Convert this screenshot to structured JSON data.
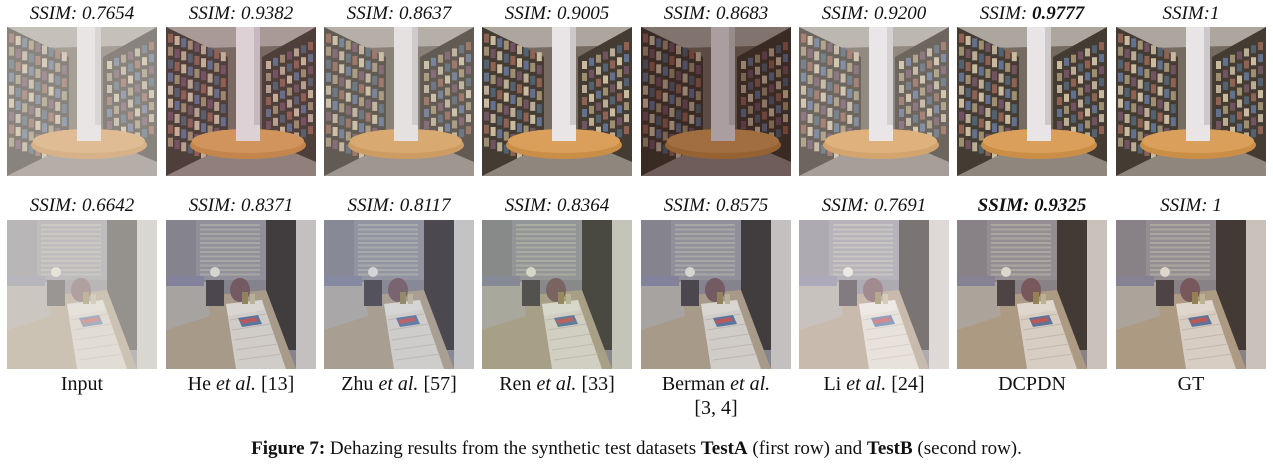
{
  "columns": [
    {
      "key": "input",
      "ssim_row1": {
        "prefix": "SSIM: ",
        "value": "0.7654",
        "best": false
      },
      "ssim_row2": {
        "prefix": "SSIM: ",
        "value": "0.6642",
        "best": false
      },
      "label": {
        "pre": "Input",
        "em": "",
        "post": "",
        "line2": ""
      },
      "look": {
        "a": "hazy",
        "b": "hazy"
      }
    },
    {
      "key": "he",
      "ssim_row1": {
        "prefix": "SSIM: ",
        "value": "0.9382",
        "best": false
      },
      "ssim_row2": {
        "prefix": "SSIM: ",
        "value": "0.8371",
        "best": false
      },
      "label": {
        "pre": "He ",
        "em": "et al.",
        "post": " [13]",
        "line2": ""
      },
      "look": {
        "a": "pinkish",
        "b": "cool"
      }
    },
    {
      "key": "zhu",
      "ssim_row1": {
        "prefix": "SSIM: ",
        "value": "0.8637",
        "best": false
      },
      "ssim_row2": {
        "prefix": "SSIM: ",
        "value": "0.8117",
        "best": false
      },
      "label": {
        "pre": "Zhu ",
        "em": "et al.",
        "post": " [57]",
        "line2": ""
      },
      "look": {
        "a": "lighthazy",
        "b": "bluish"
      }
    },
    {
      "key": "ren",
      "ssim_row1": {
        "prefix": "SSIM: ",
        "value": "0.9005",
        "best": false
      },
      "ssim_row2": {
        "prefix": "SSIM: ",
        "value": "0.8364",
        "best": false
      },
      "label": {
        "pre": "Ren ",
        "em": "et al.",
        "post": " [33]",
        "line2": ""
      },
      "look": {
        "a": "clean",
        "b": "greenish"
      }
    },
    {
      "key": "berman",
      "ssim_row1": {
        "prefix": "SSIM: ",
        "value": "0.8683",
        "best": false
      },
      "ssim_row2": {
        "prefix": "SSIM: ",
        "value": "0.8575",
        "best": false
      },
      "label": {
        "pre": "Berman ",
        "em": "et al.",
        "post": "",
        "line2": "[3, 4]"
      },
      "look": {
        "a": "dark",
        "b": "cool"
      }
    },
    {
      "key": "li",
      "ssim_row1": {
        "prefix": "SSIM: ",
        "value": "0.9200",
        "best": false
      },
      "ssim_row2": {
        "prefix": "SSIM: ",
        "value": "0.7691",
        "best": false
      },
      "label": {
        "pre": "Li ",
        "em": "et al.",
        "post": " [24]",
        "line2": ""
      },
      "look": {
        "a": "pale",
        "b": "pale"
      }
    },
    {
      "key": "dcpdn",
      "ssim_row1": {
        "prefix": "SSIM: ",
        "value": "0.9777",
        "best": true
      },
      "ssim_row2": {
        "prefix": "SSIM: ",
        "value": "0.9325",
        "best": true
      },
      "label": {
        "pre": "DCPDN",
        "em": "",
        "post": "",
        "line2": ""
      },
      "look": {
        "a": "clean",
        "b": "warm"
      }
    },
    {
      "key": "gt",
      "ssim_row1": {
        "prefix": "SSIM:",
        "value": "1",
        "best": false
      },
      "ssim_row2": {
        "prefix": "SSIM: ",
        "value": "1",
        "best": false
      },
      "label": {
        "pre": "GT",
        "em": "",
        "post": "",
        "line2": ""
      },
      "look": {
        "a": "clean",
        "b": "warm"
      }
    }
  ],
  "caption": {
    "label": "Figure 7:",
    "text1": " Dehazing results from the synthetic test datasets ",
    "b1": "TestA",
    "text2": " (first row) and ",
    "b2": "TestB",
    "text3": " (second row)."
  },
  "colors": {
    "shelf_dark": "#3a3228",
    "pillar": "#e8e4e6",
    "table_wood": "#c8883e",
    "wall_room": "#8c8a92",
    "floor_room": "#b5a58c"
  }
}
